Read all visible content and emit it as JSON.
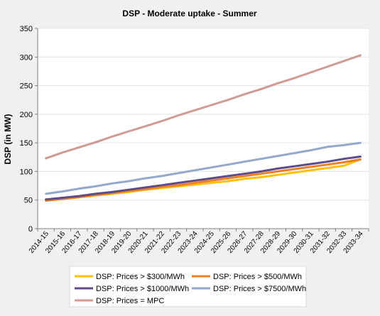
{
  "chart_data": {
    "type": "line",
    "title": "DSP - Moderate uptake - Summer",
    "ylabel": "DSP (in MW)",
    "xlabel": "",
    "ylim": [
      0,
      350
    ],
    "yticks": [
      0,
      50,
      100,
      150,
      200,
      250,
      300,
      350
    ],
    "grid": "horizontal",
    "legend_position": "bottom",
    "categories": [
      "2014-15",
      "2015-16",
      "2016-17",
      "2017-18",
      "2018-19",
      "2019-20",
      "2020-21",
      "2021-22",
      "2022-23",
      "2023-24",
      "2024-25",
      "2025-26",
      "2026-27",
      "2027-28",
      "2028-29",
      "2029-30",
      "2030-31",
      "2031-32",
      "2032-33",
      "2033-34"
    ],
    "series": [
      {
        "name": "DSP: Prices > $300/MWh",
        "color": "#ffc000",
        "values": [
          49,
          52,
          55,
          58,
          61,
          64,
          68,
          71,
          74,
          77,
          80,
          83,
          87,
          90,
          94,
          98,
          102,
          106,
          110,
          121
        ]
      },
      {
        "name": "DSP: Prices > $500/MWh",
        "color": "#f07f22",
        "values": [
          49,
          52,
          55,
          59,
          62,
          66,
          69,
          73,
          76,
          80,
          84,
          88,
          92,
          96,
          100,
          104,
          108,
          112,
          116,
          121
        ]
      },
      {
        "name": "DSP: Prices > $1000/MWh",
        "color": "#5e4b8b",
        "values": [
          51,
          54,
          57,
          61,
          64,
          68,
          72,
          76,
          80,
          84,
          88,
          92,
          96,
          100,
          105,
          109,
          113,
          117,
          122,
          126
        ]
      },
      {
        "name": "DSP: Prices > $7500/MWh",
        "color": "#94a8cc",
        "values": [
          61,
          65,
          70,
          74,
          79,
          83,
          88,
          92,
          97,
          102,
          107,
          112,
          117,
          122,
          127,
          132,
          137,
          143,
          146,
          150
        ]
      },
      {
        "name": "DSP: Prices = MPC",
        "color": "#d09a95",
        "values": [
          123,
          133,
          142,
          151,
          161,
          170,
          179,
          188,
          198,
          207,
          216,
          225,
          235,
          244,
          254,
          263,
          273,
          283,
          293,
          303
        ]
      }
    ]
  }
}
